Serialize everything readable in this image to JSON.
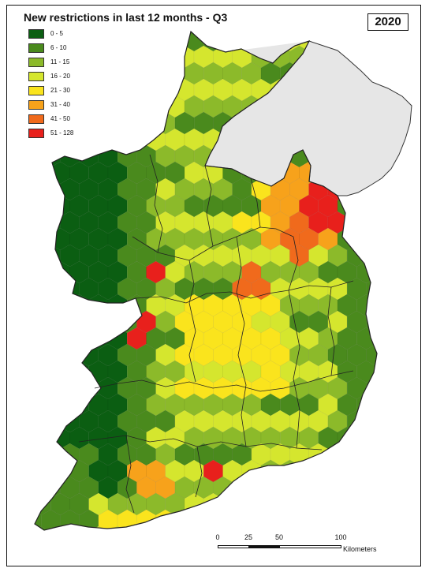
{
  "title": "New restrictions in last 12 months - Q3",
  "year": "2020",
  "legend": {
    "items": [
      {
        "label": "0 - 5",
        "color": "#0b5e12"
      },
      {
        "label": "6 - 10",
        "color": "#4a8a1d"
      },
      {
        "label": "11 - 15",
        "color": "#8cba2a"
      },
      {
        "label": "16 - 20",
        "color": "#d5e62e"
      },
      {
        "label": "21 - 30",
        "color": "#fae41d"
      },
      {
        "label": "31 - 40",
        "color": "#f7a21b"
      },
      {
        "label": "41 - 50",
        "color": "#f06a1c"
      },
      {
        "label": "51 - 128",
        "color": "#e8201c"
      }
    ]
  },
  "northern_region_color": "#e6e6e6",
  "scale_bar": {
    "ticks": [
      "0",
      "25",
      "50",
      "100"
    ],
    "unit": "Kilometers"
  }
}
